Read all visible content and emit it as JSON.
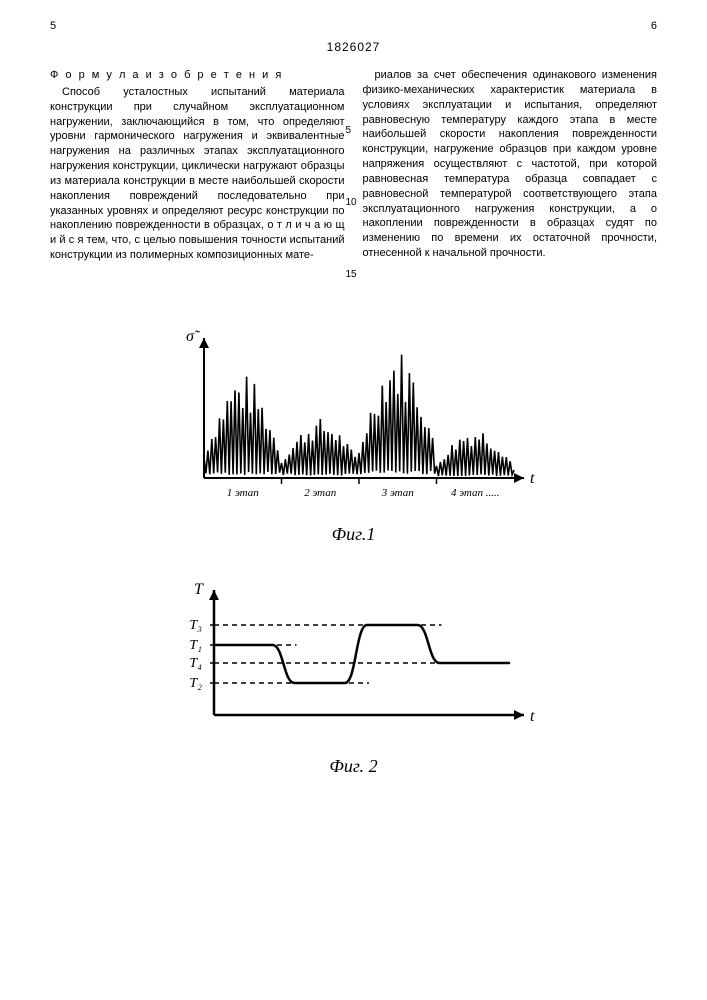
{
  "header": {
    "left_page_num": "5",
    "right_page_num": "6",
    "patent_number": "1826027"
  },
  "body": {
    "formula_title": "Ф о р м у л а  и з о б р е т е н и я",
    "left_column": "Способ усталостных испытаний материала конструкции при случайном эксплуатационном нагружении, заключающийся в том, что определяют уровни гармонического нагружения и эквивалентные нагружения на различных этапах эксплуатационного нагружения конструкции, циклически нагружают образцы из материала конструкции в месте наибольшей скорости накопления повреждений последовательно при указанных уровнях и определяют ресурс конструкции по накоплению поврежденности в образцах, о т л и ч а ю щ и й с я  тем, что, с целью повышения точности испытаний конструкции из полимерных композиционных мате-",
    "right_column": "риалов за счет обеспечения одинакового изменения физико-механических характеристик материала в условиях эксплуатации и испытания, определяют равновесную температуру каждого этапа в месте наибольшей скорости накопления поврежденности конструкции, нагружение образцов при каждом уровне напряжения осуществляют с частотой, при которой равновесная температура образца совпадает с равновесной температурой соответствующего этапа эксплуатационного нагружения конструкции, а о накоплении поврежденности в образцах судят по изменению по времени их остаточной прочности, отнесенной к начальной прочности.",
    "line_marks": {
      "m5": "5",
      "m10": "10",
      "m15": "15"
    }
  },
  "fig1": {
    "caption": "Фиг.1",
    "y_axis": "σ̃",
    "x_axis": "t",
    "stages": [
      "1 этап",
      "2 этап",
      "3 этап",
      "4 этап ....."
    ],
    "colors": {
      "stroke": "#000000",
      "bg": "#ffffff"
    },
    "stroke_width": 2
  },
  "fig2": {
    "caption": "Фиг. 2",
    "y_axis": "T",
    "x_axis": "t",
    "y_ticks": [
      "T₃",
      "T₁",
      "T₄",
      "T₂"
    ],
    "y_positions": [
      20,
      40,
      58,
      78
    ],
    "plateau_levels": [
      40,
      78,
      20,
      58
    ],
    "colors": {
      "stroke": "#000000",
      "dash": "#000000",
      "bg": "#ffffff"
    },
    "stroke_width": 2.5,
    "dash_pattern": "5,4"
  }
}
